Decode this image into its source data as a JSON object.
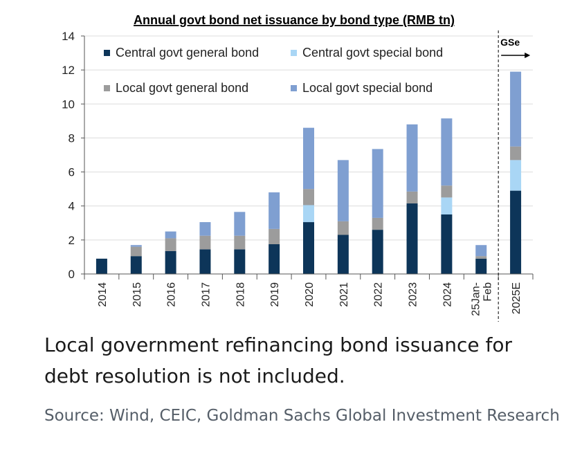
{
  "chart_data": {
    "type": "bar",
    "stacked": true,
    "title": "Annual govt bond net issuance by bond type (RMB tn)",
    "categories": [
      "2014",
      "2015",
      "2016",
      "2017",
      "2018",
      "2019",
      "2020",
      "2021",
      "2022",
      "2023",
      "2024",
      "25Jan-Feb",
      "2025E"
    ],
    "category_lines": [
      [
        "2014"
      ],
      [
        "2015"
      ],
      [
        "2016"
      ],
      [
        "2017"
      ],
      [
        "2018"
      ],
      [
        "2019"
      ],
      [
        "2020"
      ],
      [
        "2021"
      ],
      [
        "2022"
      ],
      [
        "2023"
      ],
      [
        "2024"
      ],
      [
        "25Jan-",
        "Feb"
      ],
      [
        "2025E"
      ]
    ],
    "series": [
      {
        "name": "Central govt general bond",
        "color": "#0d3559",
        "values": [
          0.9,
          1.05,
          1.35,
          1.45,
          1.45,
          1.75,
          3.05,
          2.3,
          2.6,
          4.15,
          3.5,
          0.9,
          4.9
        ]
      },
      {
        "name": "Central govt special bond",
        "color": "#a9d6f5",
        "values": [
          0,
          0,
          0,
          0,
          0,
          0,
          1.0,
          0,
          0,
          0,
          1.0,
          0,
          1.8
        ]
      },
      {
        "name": "Local govt general bond",
        "color": "#9c9c9c",
        "values": [
          0,
          0.55,
          0.75,
          0.8,
          0.8,
          0.9,
          0.95,
          0.8,
          0.7,
          0.7,
          0.7,
          0.15,
          0.8
        ]
      },
      {
        "name": "Local govt special bond",
        "color": "#7f9fd1",
        "values": [
          0,
          0.1,
          0.4,
          0.8,
          1.4,
          2.15,
          3.6,
          3.6,
          4.05,
          3.95,
          3.95,
          0.65,
          4.4
        ]
      }
    ],
    "ylim": [
      0,
      14
    ],
    "yticks": [
      0,
      2,
      4,
      6,
      8,
      10,
      12,
      14
    ],
    "grid": true,
    "legend_position": "top-left",
    "annotation": {
      "label": "GSe",
      "at_category": "2025E",
      "style": "dashed vertical divider with right arrow"
    }
  },
  "caption": "Local government refinancing bond issuance for debt resolution is not included.",
  "source": "Source: Wind, CEIC, Goldman Sachs Global Investment Research"
}
